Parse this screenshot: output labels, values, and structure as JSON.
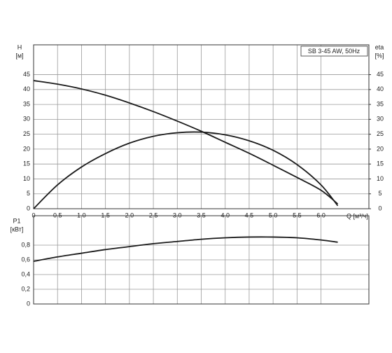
{
  "chart_data": [
    {
      "type": "line",
      "title": "SB 3-45 AW, 50Hz",
      "y_label": "H",
      "y_unit": "[м]",
      "y2_label": "eta",
      "y2_unit": "[%]",
      "x_label": "Q [м³/ч]",
      "x": [
        0,
        0.5,
        1,
        1.5,
        2,
        2.5,
        3,
        3.5,
        4,
        4.5,
        5,
        5.5,
        6,
        6.35
      ],
      "series": [
        {
          "name": "H",
          "color": "#1a1a1a",
          "values": [
            43,
            41.8,
            40.2,
            38.1,
            35.5,
            32.6,
            29.4,
            26,
            22.3,
            18.6,
            14.6,
            10.5,
            6.2,
            1.6
          ]
        },
        {
          "name": "eta",
          "color": "#1a1a1a",
          "axis": "y2",
          "values": [
            0,
            8,
            14,
            18.5,
            22,
            24.3,
            25.5,
            25.7,
            24.8,
            22.8,
            19.6,
            14.8,
            8,
            1
          ]
        }
      ],
      "xlim": [
        0,
        7
      ],
      "xticks": [
        0,
        {
          "value": 0.5,
          "label": "0,5"
        },
        {
          "value": 1,
          "label": "1,0"
        },
        {
          "value": 1.5,
          "label": "1,5"
        },
        {
          "value": 2,
          "label": "2,0"
        },
        {
          "value": 2.5,
          "label": "2,5"
        },
        {
          "value": 3,
          "label": "3,0"
        },
        {
          "value": 3.5,
          "label": "3,5"
        },
        {
          "value": 4,
          "label": "4,0"
        },
        {
          "value": 4.5,
          "label": "4,5"
        },
        {
          "value": 5,
          "label": "5,0"
        },
        {
          "value": 5.5,
          "label": "5,5"
        },
        {
          "value": 6,
          "label": "6,0"
        }
      ],
      "ylim": [
        0,
        55
      ],
      "yticks": [
        0,
        5,
        10,
        15,
        20,
        25,
        30,
        35,
        40,
        45
      ],
      "y2lim": [
        0,
        55
      ],
      "y2ticks": [
        0,
        5,
        10,
        15,
        20,
        25,
        30,
        35,
        40,
        45
      ],
      "grid": true
    },
    {
      "type": "line",
      "y_label": "P1",
      "y_unit": "[кВт]",
      "x": [
        0,
        0.5,
        1,
        1.5,
        2,
        2.5,
        3,
        3.5,
        4,
        4.5,
        5,
        5.5,
        6,
        6.35
      ],
      "series": [
        {
          "name": "P1",
          "color": "#1a1a1a",
          "values": [
            0.58,
            0.64,
            0.69,
            0.74,
            0.78,
            0.82,
            0.85,
            0.88,
            0.9,
            0.91,
            0.91,
            0.9,
            0.87,
            0.84
          ]
        }
      ],
      "xlim": [
        0,
        7
      ],
      "ylim": [
        0,
        1.2
      ],
      "yticks": [
        0,
        {
          "value": 0.2,
          "label": "0,2"
        },
        {
          "value": 0.4,
          "label": "0,4"
        },
        {
          "value": 0.6,
          "label": "0,6"
        },
        {
          "value": 0.8,
          "label": "0,8"
        }
      ],
      "grid": true
    }
  ]
}
